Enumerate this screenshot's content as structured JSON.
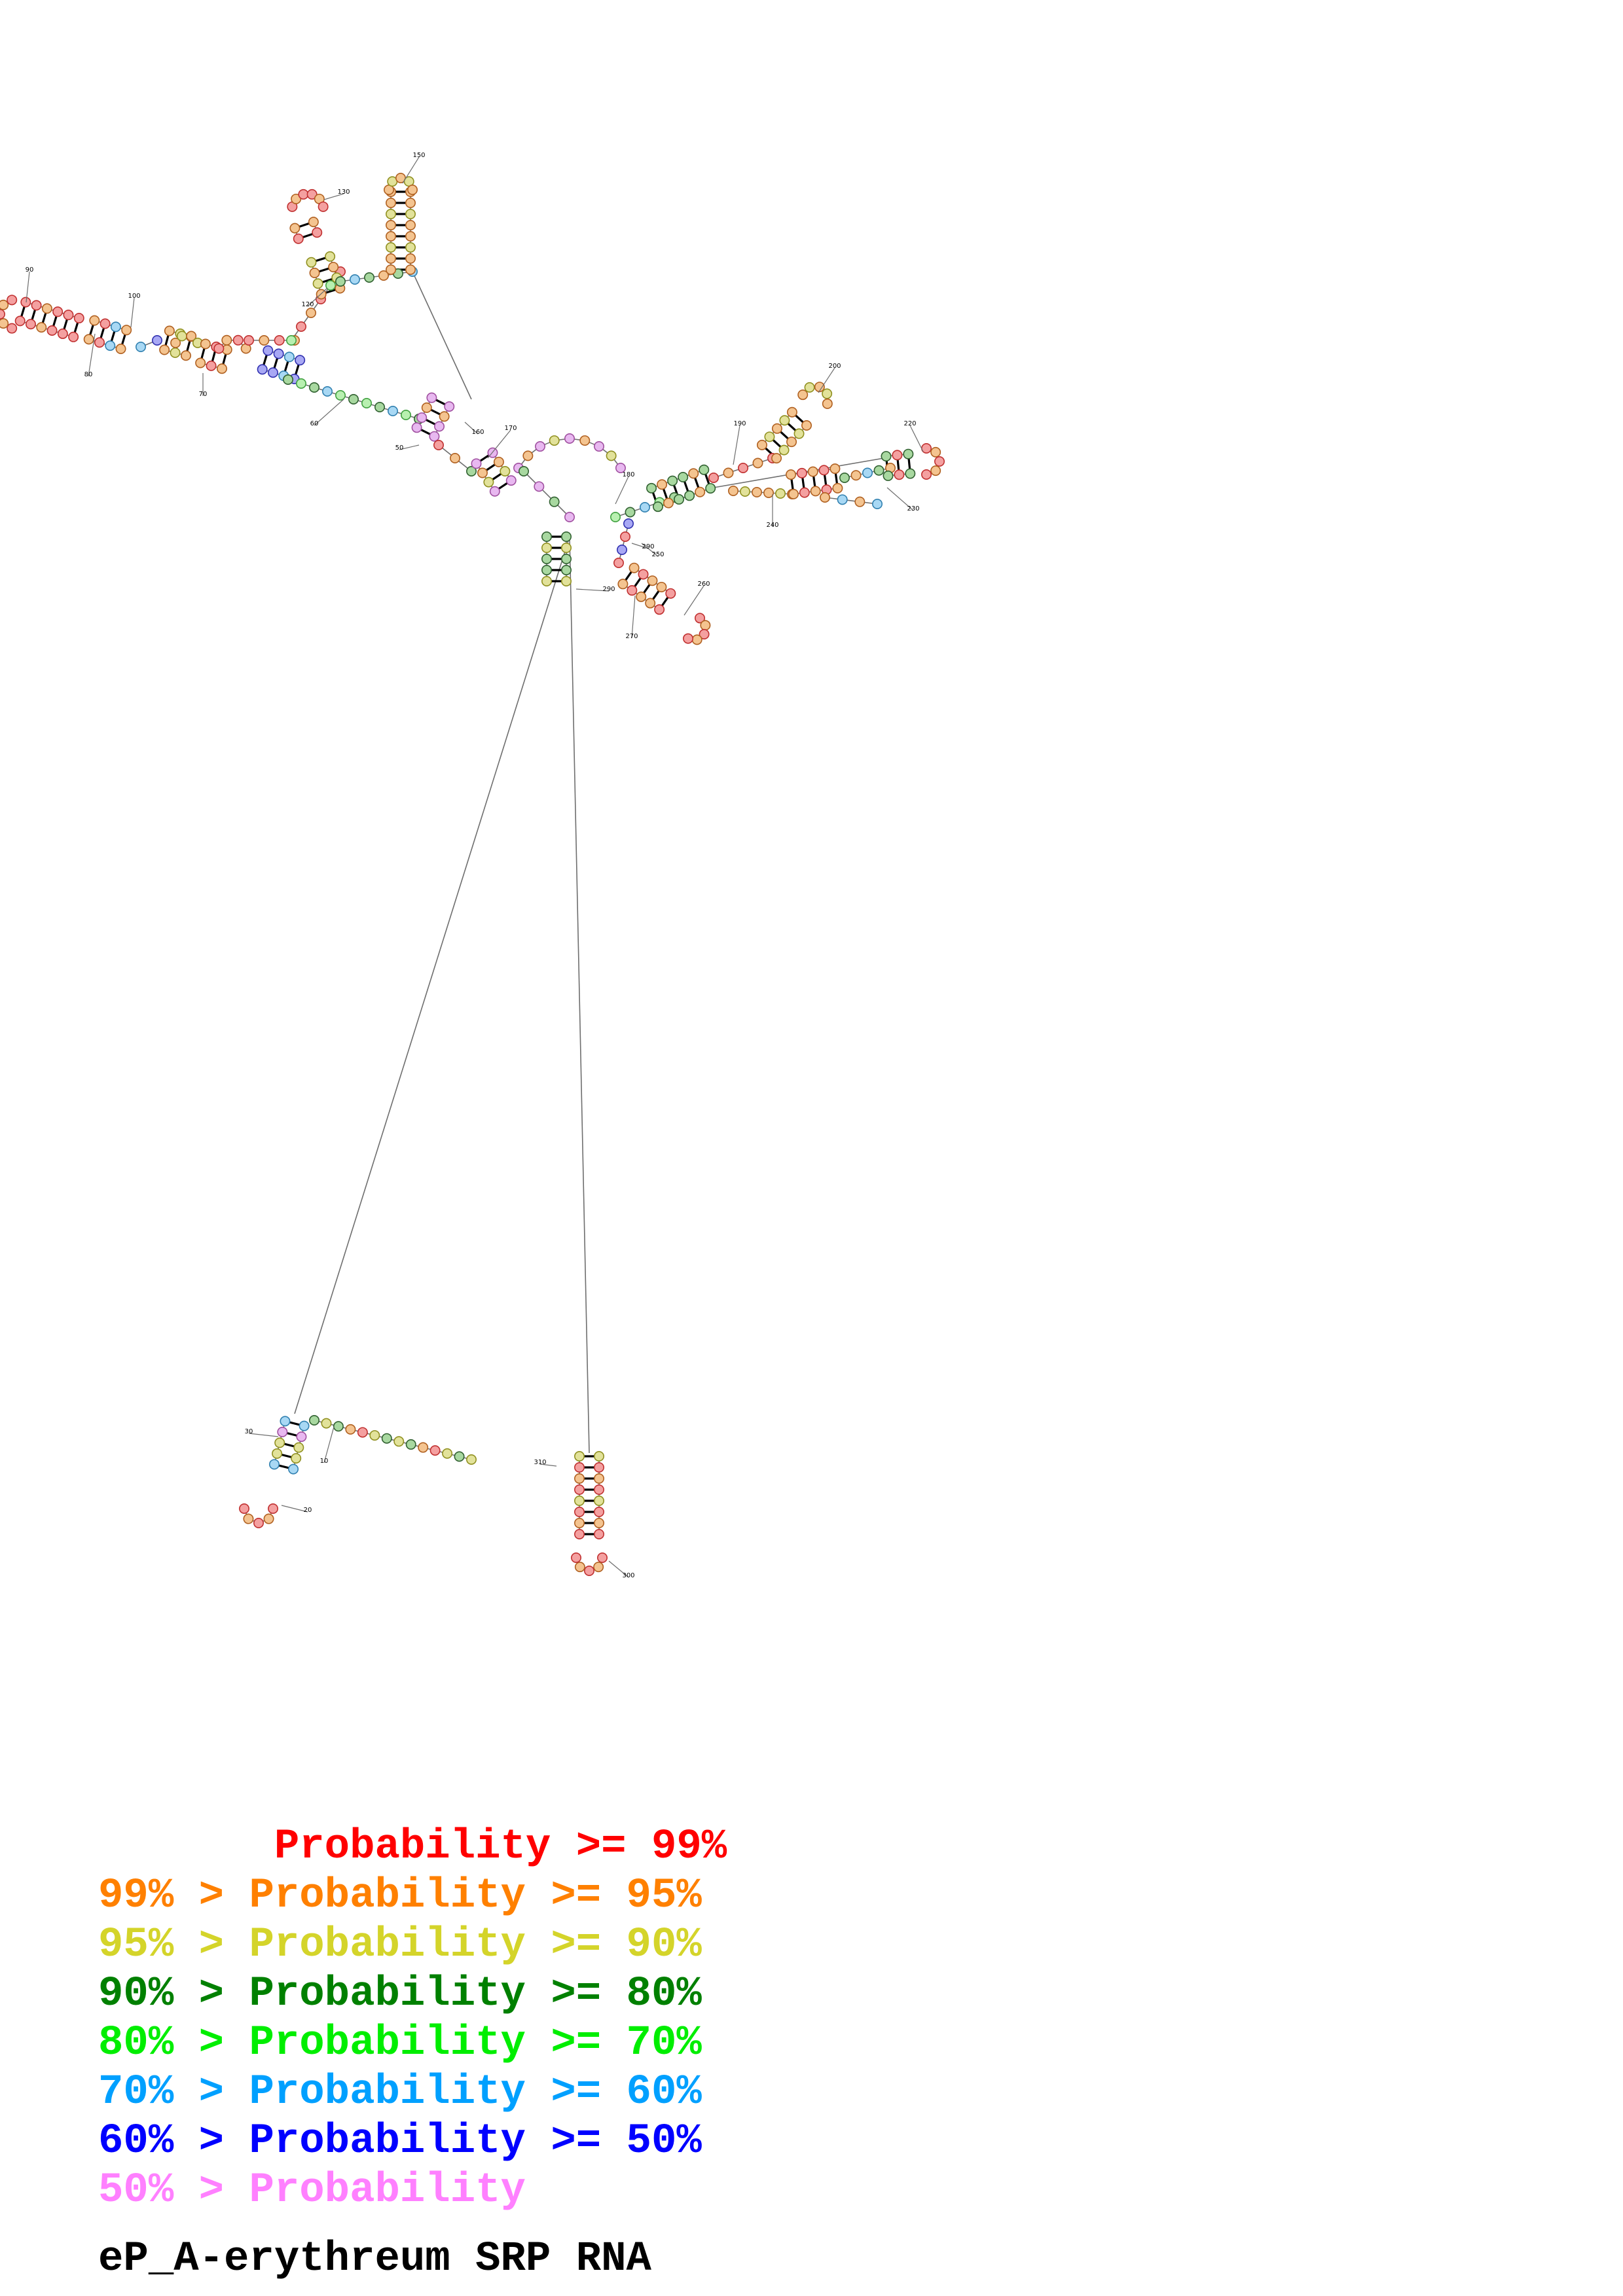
{
  "title": "eP_A-erythreum SRP RNA",
  "position_labels": [
    "10",
    "20",
    "30",
    "50",
    "60",
    "70",
    "80",
    "90",
    "100",
    "120",
    "130",
    "150",
    "160",
    "170",
    "180",
    "190",
    "200",
    "220",
    "230",
    "240",
    "250",
    "260",
    "270",
    "290",
    "290",
    "300",
    "310"
  ],
  "legend": [
    {
      "text": "       Probability >= 99%",
      "color": "#ff0000"
    },
    {
      "text": "99% > Probability >= 95%",
      "color": "#ff8000"
    },
    {
      "text": "95% > Probability >= 90%",
      "color": "#d4d42a"
    },
    {
      "text": "90% > Probability >= 80%",
      "color": "#008000"
    },
    {
      "text": "80% > Probability >= 70%",
      "color": "#00ee00"
    },
    {
      "text": "70% > Probability >= 60%",
      "color": "#00a0ff"
    },
    {
      "text": "60% > Probability >= 50%",
      "color": "#0000ff"
    },
    {
      "text": "50% > Probability",
      "color": "#ff80ff"
    }
  ],
  "nucleotide_colors": {
    "p99": "#f4a0a0",
    "p95": "#f4c490",
    "p90": "#e2e29a",
    "p80": "#a8d8a0",
    "p70": "#b8f0b0",
    "p60": "#a8d8f4",
    "p50": "#a8a8f4",
    "plow": "#e8b8f0"
  },
  "outline_colors": {
    "p99": "#c03030",
    "p95": "#b06020",
    "p90": "#909020",
    "p80": "#306030",
    "p70": "#40a040",
    "p60": "#3080b0",
    "p50": "#3030b0",
    "plow": "#a050a0"
  }
}
